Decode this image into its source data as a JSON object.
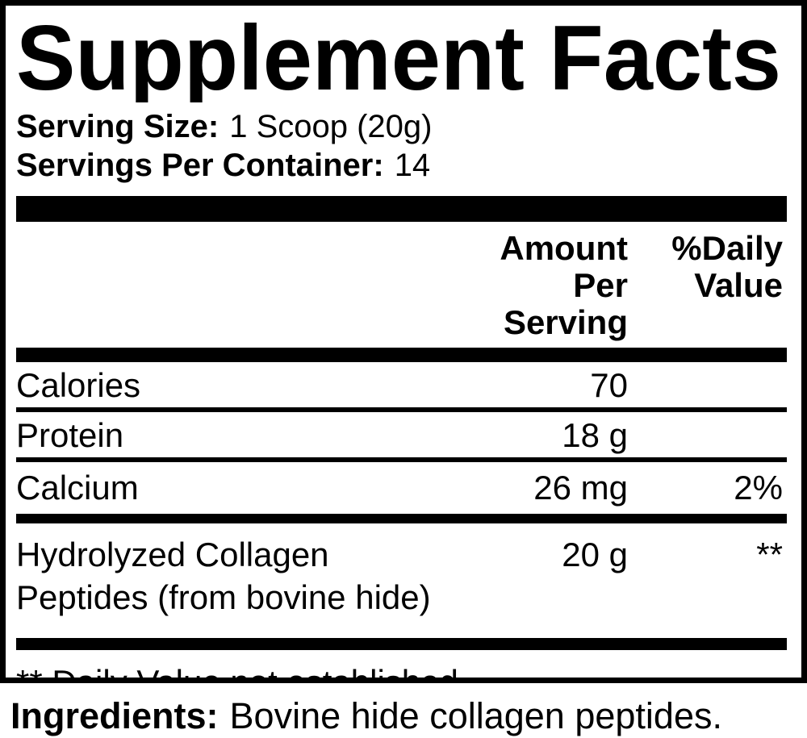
{
  "title": "Supplement Facts",
  "serving": {
    "size_label": "Serving Size:",
    "size_value": "1 Scoop (20g)",
    "per_container_label": "Servings Per Container:",
    "per_container_value": "14"
  },
  "header": {
    "amount_line1": "Amount Per",
    "amount_line2": "Serving",
    "dv_line1": "%Daily",
    "dv_line2": "Value"
  },
  "rows": [
    {
      "name": "Calories",
      "amount": "70",
      "dv": ""
    },
    {
      "name": "Protein",
      "amount": "18 g",
      "dv": ""
    },
    {
      "name": "Calcium",
      "amount": "26 mg",
      "dv": "2%"
    },
    {
      "name": "Hydrolyzed Collagen Peptides (from bovine hide)",
      "amount": "20 g",
      "dv": "**"
    }
  ],
  "footnote": "** Daily Value not established",
  "ingredients": {
    "label": "Ingredients:",
    "value": "Bovine hide collagen peptides."
  },
  "colors": {
    "text": "#000000",
    "background": "#ffffff"
  }
}
